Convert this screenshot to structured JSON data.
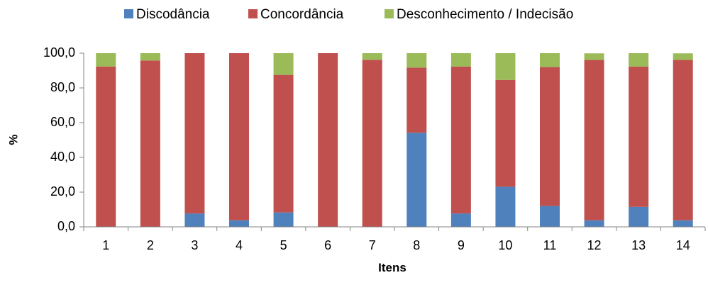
{
  "chart_data": {
    "type": "bar",
    "stacked": true,
    "orientation": "vertical",
    "xlabel": "Itens",
    "ylabel": "%",
    "ylim": [
      0,
      100
    ],
    "y_ticks": [
      "0,0",
      "20,0",
      "40,0",
      "60,0",
      "80,0",
      "100,0"
    ],
    "grid": false,
    "legend_position": "top-center",
    "categories": [
      "1",
      "2",
      "3",
      "4",
      "5",
      "6",
      "7",
      "8",
      "9",
      "10",
      "11",
      "12",
      "13",
      "14"
    ],
    "series": [
      {
        "name": "Discodância",
        "color": "#4F81BD",
        "values": [
          0.0,
          0.0,
          7.7,
          3.8,
          8.3,
          0.0,
          0.0,
          54.2,
          7.7,
          23.1,
          12.0,
          3.8,
          11.5,
          3.8
        ]
      },
      {
        "name": "Concordância",
        "color": "#C0504D",
        "values": [
          92.3,
          95.8,
          92.3,
          96.2,
          79.2,
          100.0,
          96.2,
          37.5,
          84.6,
          61.5,
          80.0,
          92.3,
          80.8,
          92.3
        ]
      },
      {
        "name": "Desconhecimento / Indecisão",
        "color": "#9BBB59",
        "values": [
          7.7,
          4.2,
          0.0,
          0.0,
          12.5,
          0.0,
          3.8,
          8.3,
          7.7,
          15.4,
          8.0,
          3.8,
          7.7,
          3.8
        ]
      }
    ]
  }
}
